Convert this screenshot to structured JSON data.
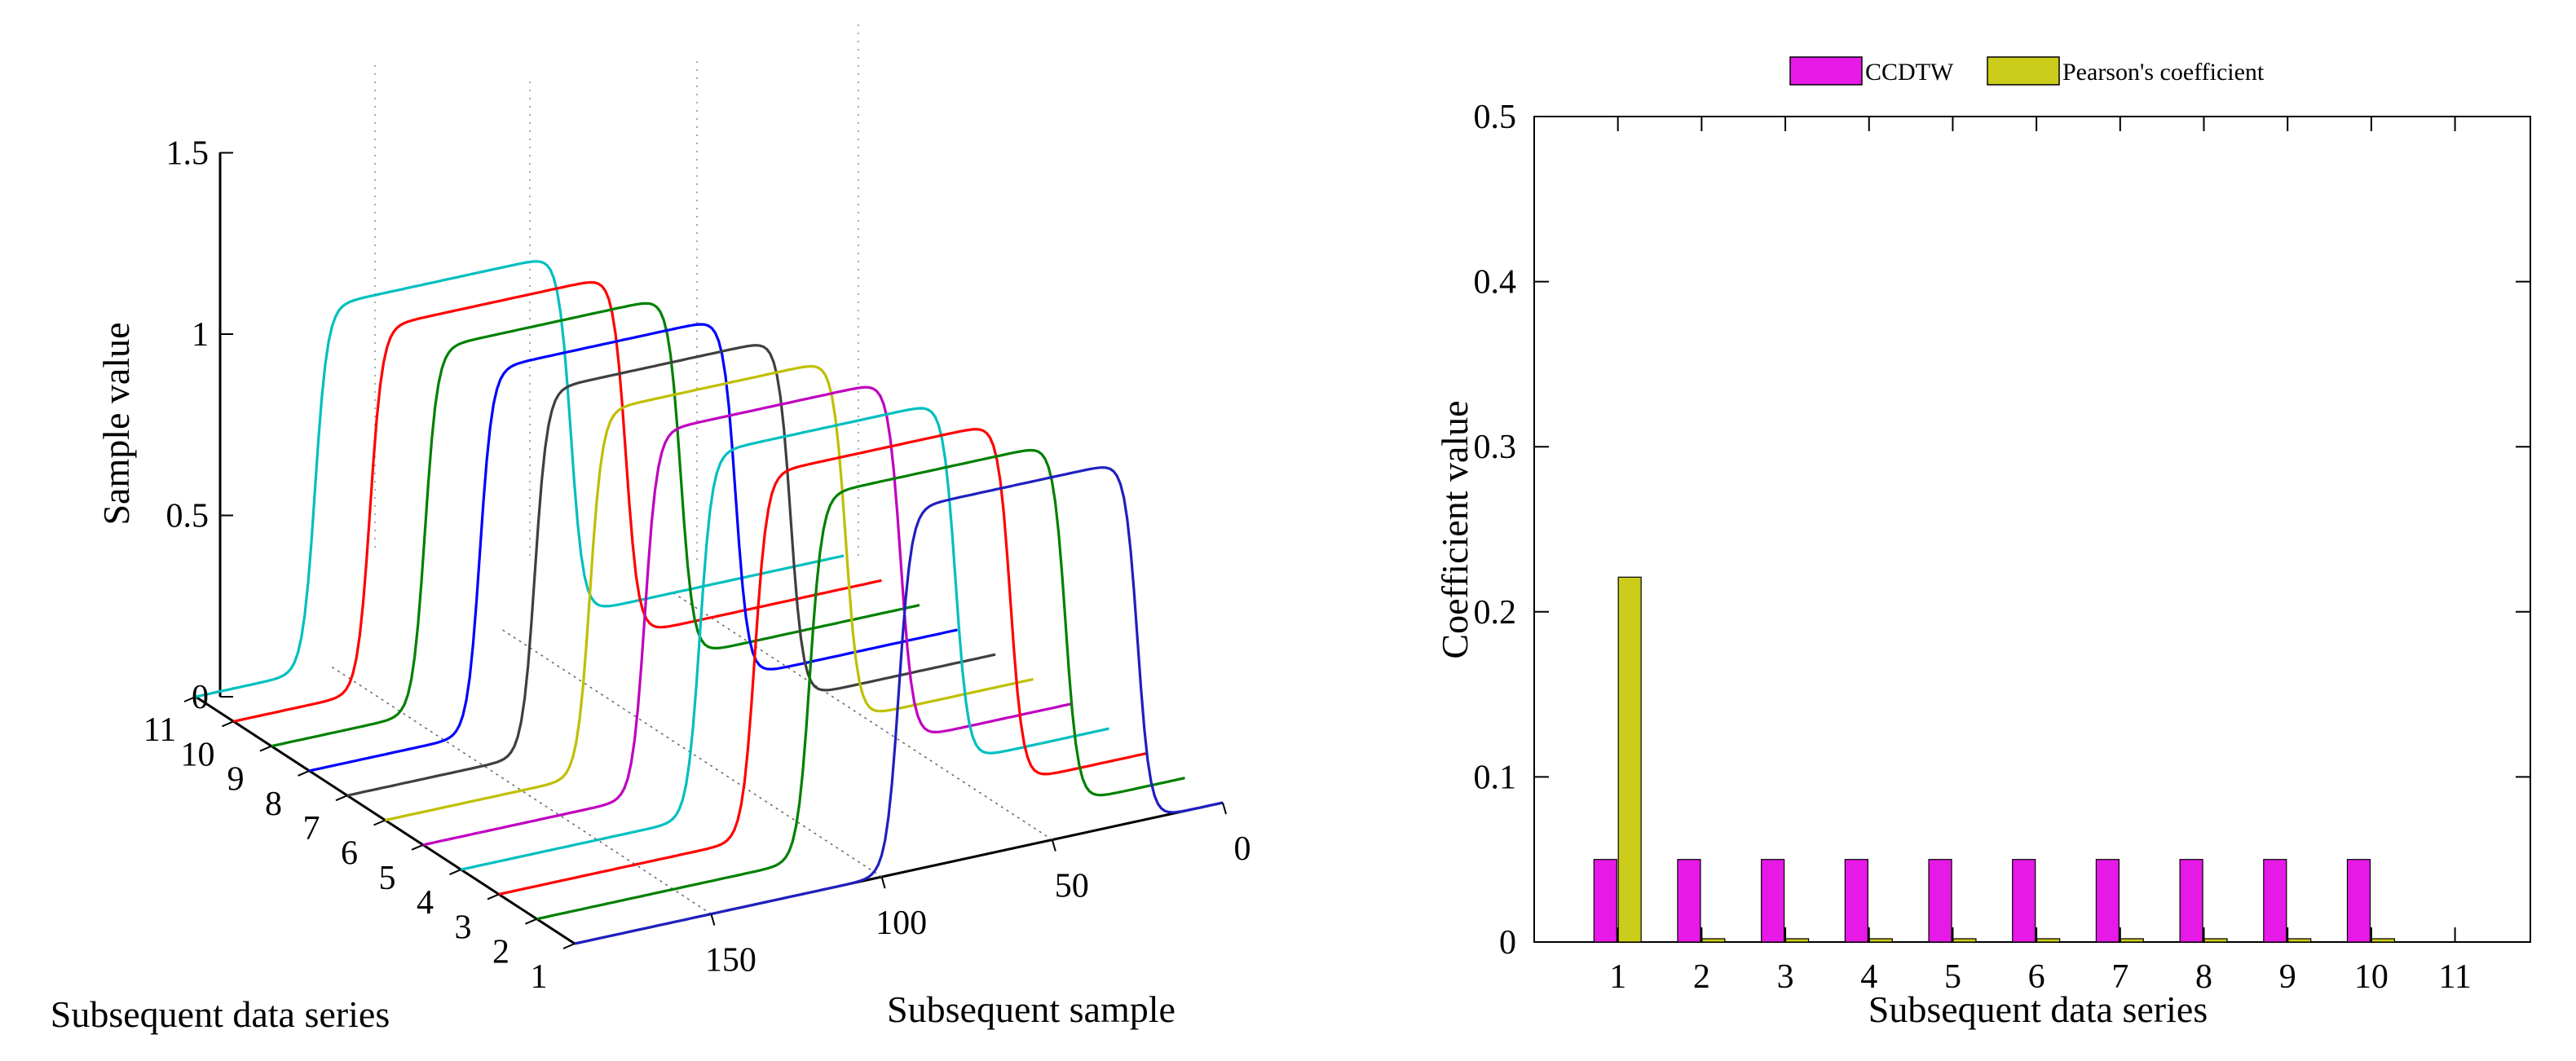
{
  "chart_data": [
    {
      "type": "line",
      "view": "3d waterfall",
      "title": "",
      "xlabel": "Subsequent sample",
      "ylabel": "Subsequent data series",
      "zlabel": "Sample value",
      "x_ticks": [
        "0",
        "50",
        "100",
        "150"
      ],
      "y_ticks": [
        "1",
        "2",
        "3",
        "4",
        "5",
        "6",
        "7",
        "8",
        "9",
        "10",
        "11"
      ],
      "z_ticks": [
        "0",
        "0.5",
        "1",
        "1.5"
      ],
      "xlim": [
        0,
        190
      ],
      "ylim": [
        1,
        11
      ],
      "zlim": [
        0,
        1.5
      ],
      "series": [
        {
          "name": "1",
          "color": "#1f1fbf",
          "rise_sample": 95,
          "fall_sample": 25,
          "high": 1.0,
          "low": 0.0
        },
        {
          "name": "2",
          "color": "#008000",
          "rise_sample": 110,
          "fall_sample": 35,
          "high": 1.0,
          "low": 0.0
        },
        {
          "name": "3",
          "color": "#ff0000",
          "rise_sample": 115,
          "fall_sample": 40,
          "high": 1.0,
          "low": 0.0
        },
        {
          "name": "4",
          "color": "#00bfbf",
          "rise_sample": 120,
          "fall_sample": 45,
          "high": 1.0,
          "low": 0.0
        },
        {
          "name": "5",
          "color": "#bf00bf",
          "rise_sample": 125,
          "fall_sample": 50,
          "high": 1.0,
          "low": 0.0
        },
        {
          "name": "6",
          "color": "#bfbf00",
          "rise_sample": 130,
          "fall_sample": 55,
          "high": 1.0,
          "low": 0.0
        },
        {
          "name": "7",
          "color": "#3f3f3f",
          "rise_sample": 135,
          "fall_sample": 60,
          "high": 1.0,
          "low": 0.0
        },
        {
          "name": "8",
          "color": "#0000ff",
          "rise_sample": 140,
          "fall_sample": 65,
          "high": 1.0,
          "low": 0.0
        },
        {
          "name": "9",
          "color": "#008000",
          "rise_sample": 145,
          "fall_sample": 70,
          "high": 1.0,
          "low": 0.0
        },
        {
          "name": "10",
          "color": "#ff0000",
          "rise_sample": 150,
          "fall_sample": 75,
          "high": 1.0,
          "low": 0.0
        },
        {
          "name": "11",
          "color": "#00bfbf",
          "rise_sample": 155,
          "fall_sample": 80,
          "high": 1.0,
          "low": 0.0
        }
      ]
    },
    {
      "type": "bar",
      "title": "",
      "xlabel": "Subsequent data series",
      "ylabel": "Coefficient value",
      "categories": [
        "1",
        "2",
        "3",
        "4",
        "5",
        "6",
        "7",
        "8",
        "9",
        "10"
      ],
      "x_ticks": [
        "1",
        "2",
        "3",
        "4",
        "5",
        "6",
        "7",
        "8",
        "9",
        "10",
        "11"
      ],
      "y_ticks": [
        "0",
        "0.1",
        "0.2",
        "0.3",
        "0.4",
        "0.5"
      ],
      "ylim": [
        0,
        0.5
      ],
      "legend_position": "top-center",
      "series": [
        {
          "name": "CCDTW",
          "color": "#e619e6",
          "values": [
            0.05,
            0.05,
            0.05,
            0.05,
            0.05,
            0.05,
            0.05,
            0.05,
            0.05,
            0.05
          ]
        },
        {
          "name": "Pearson's coefficient",
          "color": "#cccc1a",
          "values": [
            0.221,
            0.002,
            0.002,
            0.002,
            0.002,
            0.002,
            0.002,
            0.002,
            0.002,
            0.002
          ]
        }
      ]
    }
  ]
}
